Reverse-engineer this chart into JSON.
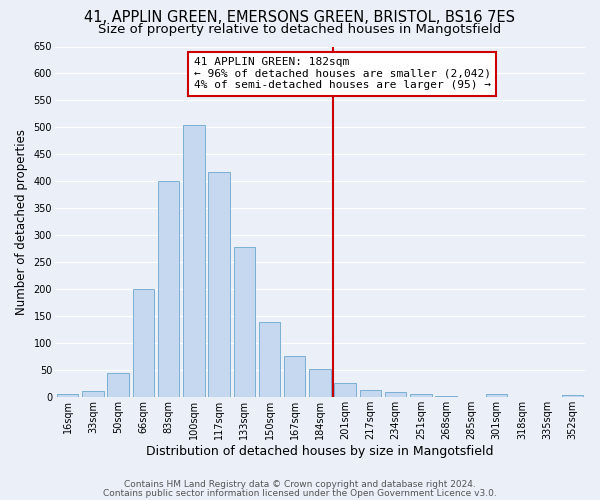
{
  "title1": "41, APPLIN GREEN, EMERSONS GREEN, BRISTOL, BS16 7ES",
  "title2": "Size of property relative to detached houses in Mangotsfield",
  "xlabel": "Distribution of detached houses by size in Mangotsfield",
  "ylabel": "Number of detached properties",
  "bar_labels": [
    "16sqm",
    "33sqm",
    "50sqm",
    "66sqm",
    "83sqm",
    "100sqm",
    "117sqm",
    "133sqm",
    "150sqm",
    "167sqm",
    "184sqm",
    "201sqm",
    "217sqm",
    "234sqm",
    "251sqm",
    "268sqm",
    "285sqm",
    "301sqm",
    "318sqm",
    "335sqm",
    "352sqm"
  ],
  "bar_values": [
    5,
    10,
    45,
    200,
    400,
    505,
    418,
    278,
    138,
    75,
    52,
    25,
    12,
    8,
    5,
    2,
    0,
    5,
    0,
    0,
    4
  ],
  "bar_color": "#c5d8f0",
  "bar_edge_color": "#7aafd4",
  "vline_index": 10,
  "vline_color": "#cc0000",
  "annotation_line1": "41 APPLIN GREEN: 182sqm",
  "annotation_line2": "← 96% of detached houses are smaller (2,042)",
  "annotation_line3": "4% of semi-detached houses are larger (95) →",
  "annotation_box_color": "#ffffff",
  "annotation_box_edge": "#cc0000",
  "ylim": [
    0,
    650
  ],
  "yticks": [
    0,
    50,
    100,
    150,
    200,
    250,
    300,
    350,
    400,
    450,
    500,
    550,
    600,
    650
  ],
  "footer1": "Contains HM Land Registry data © Crown copyright and database right 2024.",
  "footer2": "Contains public sector information licensed under the Open Government Licence v3.0.",
  "bg_color": "#eaeff8",
  "grid_color": "#ffffff",
  "title1_fontsize": 10.5,
  "title2_fontsize": 9.5,
  "xlabel_fontsize": 9,
  "ylabel_fontsize": 8.5,
  "tick_fontsize": 7,
  "annotation_fontsize": 8,
  "footer_fontsize": 6.5
}
